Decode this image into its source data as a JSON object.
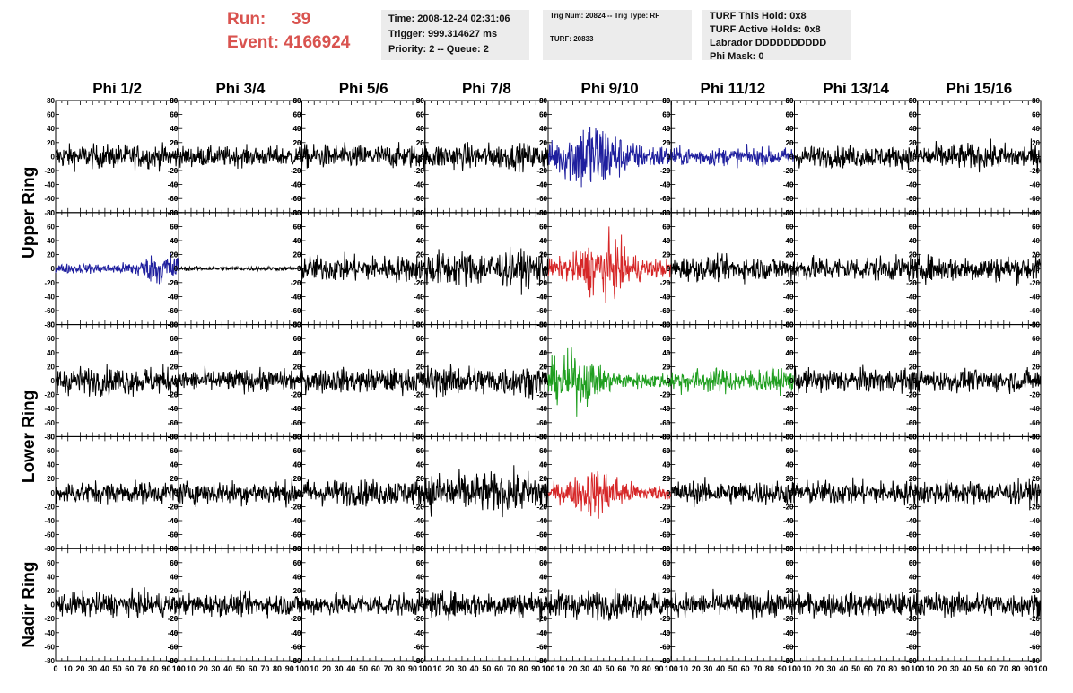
{
  "header": {
    "run_label": "Run:",
    "run_value": "39",
    "event_label": "Event:",
    "event_value": "4166924",
    "time": "Time: 2008-12-24 02:31:06",
    "trigger": "Trigger: 999.314627 ms",
    "priority": "Priority: 2 -- Queue: 2",
    "trig_num": "Trig Num: 20824 -- Trig Type: RF",
    "turf": "TURF: 20833",
    "turf_this_hold": "TURF This Hold: 0x8",
    "turf_active_holds": "TURF Active Holds: 0x8",
    "labrador": "Labrador DDDDDDDDDD",
    "phi_mask": "Phi Mask: 0"
  },
  "colors": {
    "header_text": "#d9534f",
    "box_background": "#ececec",
    "trace_default": "#000000",
    "trace_blue": "#1f1f9e",
    "trace_red": "#d62728",
    "trace_green": "#1f9e1f"
  },
  "chart_data": {
    "type": "line",
    "columns": [
      "Phi 1/2",
      "Phi 3/4",
      "Phi 5/6",
      "Phi 7/8",
      "Phi 9/10",
      "Phi 11/12",
      "Phi 13/14",
      "Phi 15/16"
    ],
    "row_groups": [
      {
        "label": "Upper Ring",
        "rows": 2
      },
      {
        "label": "Lower Ring",
        "rows": 2
      },
      {
        "label": "Nadir Ring",
        "rows": 1
      }
    ],
    "xlim": [
      0,
      100
    ],
    "ylim": [
      -80,
      80
    ],
    "x_ticks": [
      0,
      10,
      20,
      30,
      40,
      50,
      60,
      70,
      80,
      90,
      100
    ],
    "x_tick_labels": [
      "0",
      "10",
      "20",
      "30",
      "40",
      "50",
      "60",
      "70",
      "80",
      "90",
      "100"
    ],
    "y_ticks": [
      -80,
      -60,
      -40,
      -20,
      0,
      20,
      40,
      60,
      80
    ],
    "y_tick_labels": [
      "-80",
      "-60",
      "-40",
      "-20",
      "0",
      "20",
      "40",
      "60",
      "80"
    ],
    "samples_per_trace": 260,
    "panels": [
      [
        {
          "color": "black",
          "amp": 12,
          "peak": 42
        },
        {
          "color": "black",
          "amp": 10,
          "peak": 28
        },
        {
          "color": "black",
          "amp": 12,
          "peak": 40
        },
        {
          "color": "black",
          "amp": 13,
          "peak": 42
        },
        {
          "color": "blue",
          "amp": 26,
          "peak": 70,
          "burst": 35
        },
        {
          "color": "blue",
          "amp": 9,
          "peak": 65
        },
        {
          "color": "black",
          "amp": 11,
          "peak": 38
        },
        {
          "color": "black",
          "amp": 13,
          "peak": 44
        }
      ],
      [
        {
          "color": "blue",
          "amp": 11,
          "peak": 52,
          "burst": 90
        },
        {
          "color": "black",
          "amp": 2,
          "peak": 5
        },
        {
          "color": "black",
          "amp": 13,
          "peak": 45
        },
        {
          "color": "black",
          "amp": 18,
          "peak": 65
        },
        {
          "color": "red",
          "amp": 20,
          "peak": 60,
          "burst": 45
        },
        {
          "color": "black",
          "amp": 12,
          "peak": 40
        },
        {
          "color": "black",
          "amp": 12,
          "peak": 42
        },
        {
          "color": "black",
          "amp": 13,
          "peak": 44
        }
      ],
      [
        {
          "color": "black",
          "amp": 14,
          "peak": 55
        },
        {
          "color": "black",
          "amp": 11,
          "peak": 30
        },
        {
          "color": "black",
          "amp": 12,
          "peak": 40
        },
        {
          "color": "black",
          "amp": 15,
          "peak": 50
        },
        {
          "color": "green",
          "amp": 18,
          "peak": 60,
          "burst": 20
        },
        {
          "color": "green",
          "amp": 12,
          "peak": 35
        },
        {
          "color": "black",
          "amp": 12,
          "peak": 40
        },
        {
          "color": "black",
          "amp": 11,
          "peak": 38
        }
      ],
      [
        {
          "color": "black",
          "amp": 11,
          "peak": 40
        },
        {
          "color": "black",
          "amp": 12,
          "peak": 38
        },
        {
          "color": "black",
          "amp": 13,
          "peak": 42
        },
        {
          "color": "black",
          "amp": 20,
          "peak": 62
        },
        {
          "color": "red",
          "amp": 16,
          "peak": 52,
          "burst": 40
        },
        {
          "color": "black",
          "amp": 12,
          "peak": 40
        },
        {
          "color": "black",
          "amp": 12,
          "peak": 38
        },
        {
          "color": "black",
          "amp": 12,
          "peak": 38
        }
      ],
      [
        {
          "color": "black",
          "amp": 12,
          "peak": 44
        },
        {
          "color": "black",
          "amp": 11,
          "peak": 35
        },
        {
          "color": "black",
          "amp": 11,
          "peak": 36
        },
        {
          "color": "black",
          "amp": 13,
          "peak": 40
        },
        {
          "color": "black",
          "amp": 14,
          "peak": 44
        },
        {
          "color": "black",
          "amp": 12,
          "peak": 40
        },
        {
          "color": "black",
          "amp": 12,
          "peak": 40
        },
        {
          "color": "black",
          "amp": 12,
          "peak": 38
        }
      ]
    ]
  }
}
